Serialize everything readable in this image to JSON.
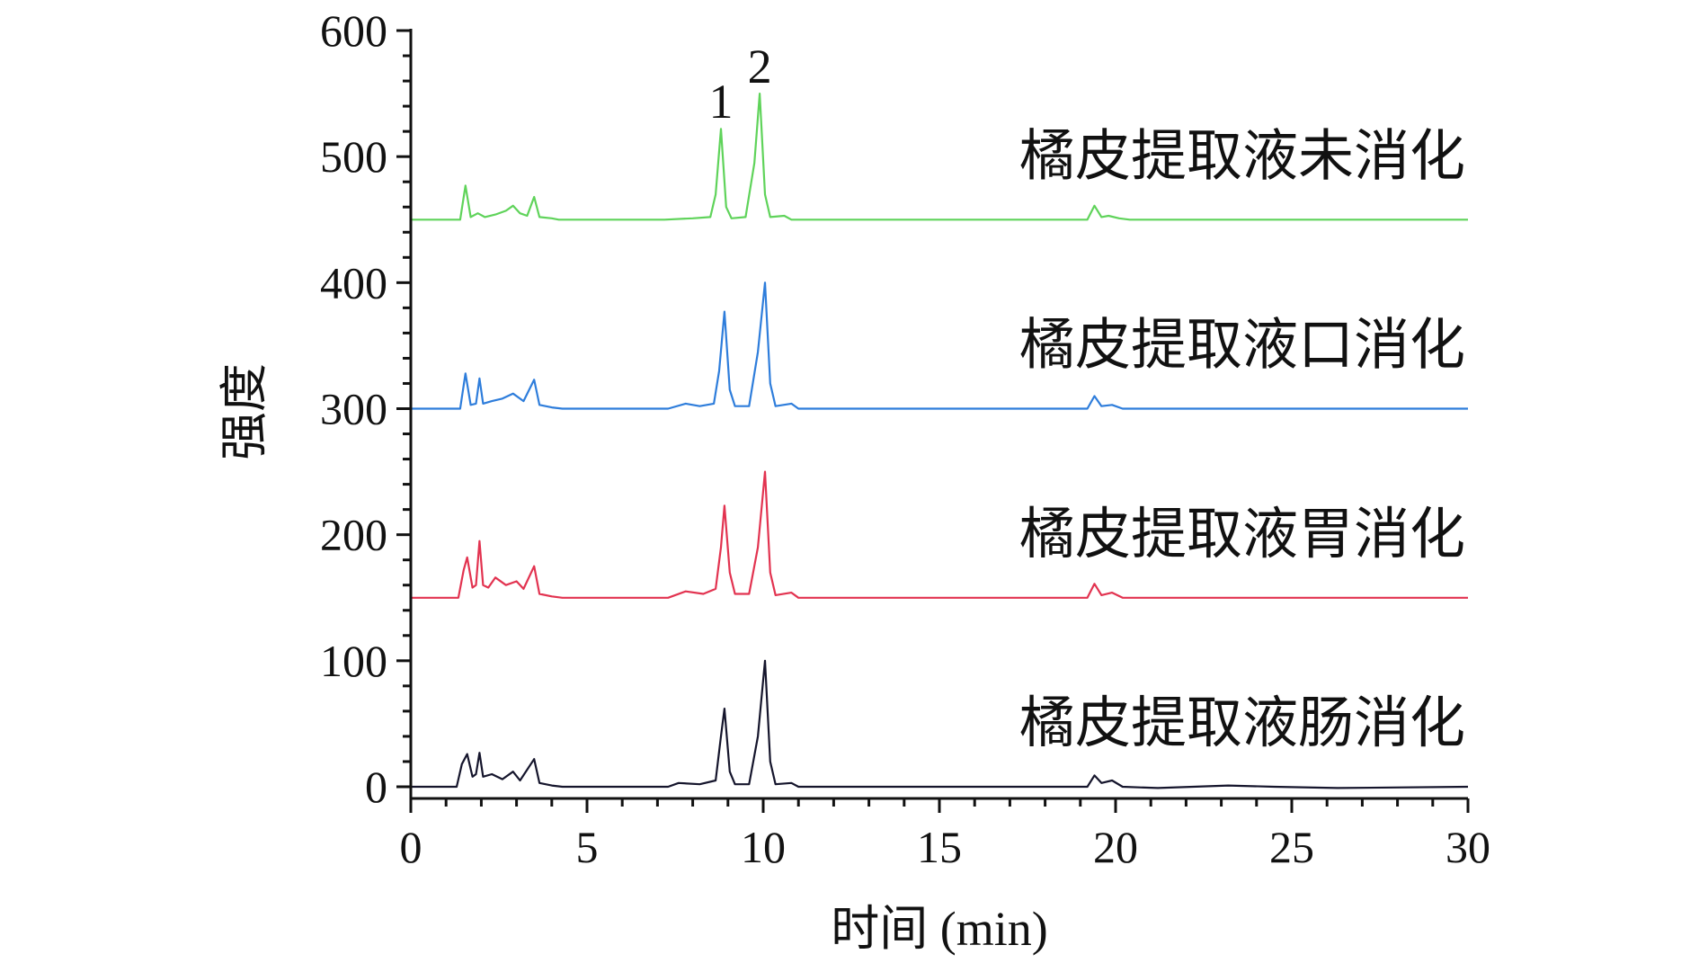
{
  "chart_data": {
    "type": "line",
    "xlabel": "时间 (min)",
    "ylabel": "强度",
    "xlim": [
      0,
      30
    ],
    "ylim": [
      0,
      600
    ],
    "x_ticks": [
      "0",
      "5",
      "10",
      "15",
      "20",
      "25",
      "30"
    ],
    "y_ticks": [
      "0",
      "100",
      "200",
      "300",
      "400",
      "500",
      "600"
    ],
    "grid": false,
    "legend": "labels placed at right above each trace",
    "peak_labels": [
      {
        "text": "1",
        "x": 8.8,
        "y": 525
      },
      {
        "text": "2",
        "x": 9.9,
        "y": 553
      }
    ],
    "series": [
      {
        "name": "橘皮提取液未消化",
        "color": "#5fd35a",
        "baseline": 450,
        "points": [
          [
            0,
            450
          ],
          [
            1.4,
            450
          ],
          [
            1.55,
            477
          ],
          [
            1.7,
            452
          ],
          [
            1.9,
            455
          ],
          [
            2.1,
            452
          ],
          [
            2.4,
            454
          ],
          [
            2.7,
            457
          ],
          [
            2.9,
            461
          ],
          [
            3.1,
            455
          ],
          [
            3.3,
            453
          ],
          [
            3.5,
            468
          ],
          [
            3.65,
            452
          ],
          [
            4,
            451
          ],
          [
            4.2,
            450
          ],
          [
            7.2,
            450
          ],
          [
            8.0,
            451
          ],
          [
            8.5,
            452
          ],
          [
            8.65,
            470
          ],
          [
            8.8,
            522
          ],
          [
            8.95,
            460
          ],
          [
            9.1,
            451
          ],
          [
            9.5,
            452
          ],
          [
            9.75,
            495
          ],
          [
            9.9,
            550
          ],
          [
            10.05,
            470
          ],
          [
            10.2,
            452
          ],
          [
            10.6,
            453
          ],
          [
            10.8,
            450
          ],
          [
            19.2,
            450
          ],
          [
            19.4,
            461
          ],
          [
            19.6,
            452
          ],
          [
            19.8,
            453
          ],
          [
            20.1,
            451
          ],
          [
            20.4,
            450
          ],
          [
            27.3,
            450
          ],
          [
            30,
            450
          ]
        ]
      },
      {
        "name": "橘皮提取液口消化",
        "color": "#2e7ddb",
        "baseline": 300,
        "points": [
          [
            0,
            300
          ],
          [
            1.4,
            300
          ],
          [
            1.55,
            328
          ],
          [
            1.7,
            303
          ],
          [
            1.85,
            304
          ],
          [
            1.95,
            324
          ],
          [
            2.05,
            304
          ],
          [
            2.3,
            306
          ],
          [
            2.6,
            308
          ],
          [
            2.9,
            312
          ],
          [
            3.2,
            306
          ],
          [
            3.5,
            323
          ],
          [
            3.65,
            303
          ],
          [
            4,
            301
          ],
          [
            4.3,
            300
          ],
          [
            7.3,
            300
          ],
          [
            7.8,
            304
          ],
          [
            8.2,
            302
          ],
          [
            8.6,
            304
          ],
          [
            8.75,
            330
          ],
          [
            8.9,
            377
          ],
          [
            9.05,
            315
          ],
          [
            9.2,
            302
          ],
          [
            9.6,
            302
          ],
          [
            9.85,
            345
          ],
          [
            10.05,
            400
          ],
          [
            10.2,
            320
          ],
          [
            10.35,
            302
          ],
          [
            10.8,
            304
          ],
          [
            11,
            300
          ],
          [
            19.2,
            300
          ],
          [
            19.4,
            310
          ],
          [
            19.6,
            302
          ],
          [
            19.9,
            303
          ],
          [
            20.2,
            300
          ],
          [
            27.5,
            300
          ],
          [
            30,
            300
          ]
        ]
      },
      {
        "name": "橘皮提取液胃消化",
        "color": "#e23350",
        "baseline": 150,
        "points": [
          [
            0,
            150
          ],
          [
            1.35,
            150
          ],
          [
            1.5,
            172
          ],
          [
            1.6,
            182
          ],
          [
            1.75,
            158
          ],
          [
            1.85,
            160
          ],
          [
            1.95,
            195
          ],
          [
            2.05,
            160
          ],
          [
            2.2,
            158
          ],
          [
            2.4,
            166
          ],
          [
            2.7,
            160
          ],
          [
            3.0,
            163
          ],
          [
            3.2,
            157
          ],
          [
            3.5,
            175
          ],
          [
            3.65,
            153
          ],
          [
            4,
            151
          ],
          [
            4.3,
            150
          ],
          [
            7.3,
            150
          ],
          [
            7.8,
            155
          ],
          [
            8.3,
            153
          ],
          [
            8.65,
            157
          ],
          [
            8.8,
            190
          ],
          [
            8.9,
            223
          ],
          [
            9.05,
            170
          ],
          [
            9.2,
            153
          ],
          [
            9.6,
            153
          ],
          [
            9.85,
            190
          ],
          [
            10.05,
            250
          ],
          [
            10.2,
            170
          ],
          [
            10.35,
            152
          ],
          [
            10.8,
            154
          ],
          [
            11,
            150
          ],
          [
            19.2,
            150
          ],
          [
            19.4,
            161
          ],
          [
            19.6,
            152
          ],
          [
            19.9,
            154
          ],
          [
            20.2,
            150
          ],
          [
            30,
            150
          ]
        ]
      },
      {
        "name": "橘皮提取液肠消化",
        "color": "#15152c",
        "baseline": 0,
        "points": [
          [
            0,
            0
          ],
          [
            1.3,
            0
          ],
          [
            1.45,
            18
          ],
          [
            1.6,
            26
          ],
          [
            1.75,
            8
          ],
          [
            1.85,
            10
          ],
          [
            1.95,
            27
          ],
          [
            2.05,
            8
          ],
          [
            2.3,
            10
          ],
          [
            2.6,
            6
          ],
          [
            2.9,
            12
          ],
          [
            3.1,
            5
          ],
          [
            3.5,
            22
          ],
          [
            3.65,
            3
          ],
          [
            4,
            1
          ],
          [
            4.3,
            0
          ],
          [
            7.3,
            0
          ],
          [
            7.6,
            3
          ],
          [
            8.2,
            2
          ],
          [
            8.65,
            5
          ],
          [
            8.8,
            40
          ],
          [
            8.9,
            62
          ],
          [
            9.05,
            12
          ],
          [
            9.2,
            2
          ],
          [
            9.6,
            2
          ],
          [
            9.85,
            40
          ],
          [
            10.05,
            100
          ],
          [
            10.2,
            20
          ],
          [
            10.35,
            2
          ],
          [
            10.8,
            3
          ],
          [
            11,
            0
          ],
          [
            19.2,
            0
          ],
          [
            19.4,
            9
          ],
          [
            19.6,
            3
          ],
          [
            19.9,
            5
          ],
          [
            20.2,
            0
          ],
          [
            21.2,
            -1
          ],
          [
            23.2,
            1
          ],
          [
            24.5,
            0
          ],
          [
            26.3,
            -1
          ],
          [
            30,
            0
          ]
        ]
      }
    ]
  }
}
